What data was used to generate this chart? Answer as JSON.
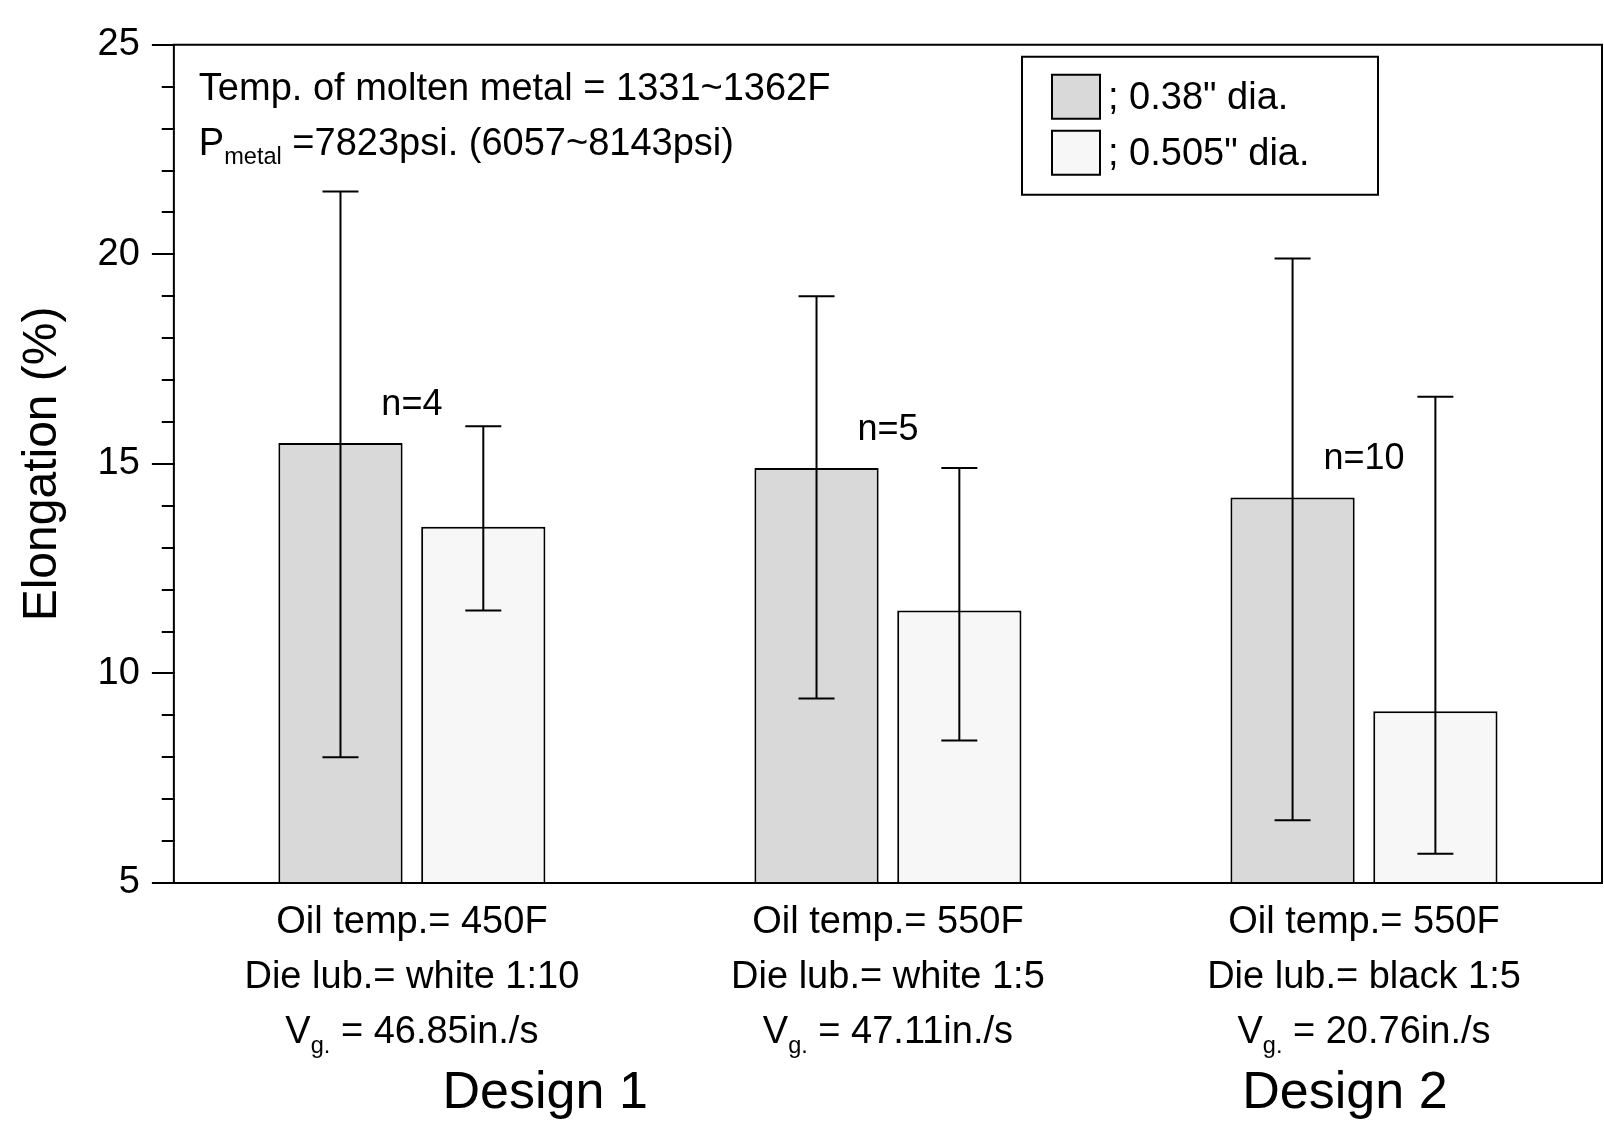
{
  "chart_data": {
    "type": "bar",
    "ylabel": "Elongation (%)",
    "categories": [
      "Oil temp.= 450F\nDie lub.= white 1:10\nV$_{g.}$ = 46.85in./s",
      "Oil temp.= 550F\nDie lub.= white 1:5\nV$_{g.}$ = 47.11in./s",
      "Oil temp.= 550F\nDie lub.= black 1:5\nV$_{g.}$ = 20.76in./s"
    ],
    "series": [
      {
        "name": "; 0.38\" dia.",
        "color": "#d9d9d9",
        "values": [
          15.5,
          14.9,
          14.2
        ],
        "errors": [
          [
            8.0,
            21.5
          ],
          [
            9.4,
            19.0
          ],
          [
            6.5,
            19.9
          ]
        ]
      },
      {
        "name": "; 0.505\" dia.",
        "color": "#f7f7f7",
        "values": [
          13.5,
          11.5,
          9.1
        ],
        "errors": [
          [
            11.5,
            15.9
          ],
          [
            8.4,
            14.9
          ],
          [
            5.7,
            16.6
          ]
        ]
      }
    ],
    "ylim": [
      5,
      25
    ],
    "yticks": [
      5,
      {
        "value": 6,
        "label": null
      },
      {
        "value": 7,
        "label": null
      },
      {
        "value": 8,
        "label": null
      },
      {
        "value": 9,
        "label": null
      },
      10,
      {
        "value": 11,
        "label": null
      },
      {
        "value": 12,
        "label": null
      },
      {
        "value": 13,
        "label": null
      },
      {
        "value": 14,
        "label": null
      },
      15,
      {
        "value": 16,
        "label": null
      },
      {
        "value": 17,
        "label": null
      },
      {
        "value": 18,
        "label": null
      },
      {
        "value": 19,
        "label": null
      },
      20,
      {
        "value": 21,
        "label": null
      },
      {
        "value": 22,
        "label": null
      },
      {
        "value": 23,
        "label": null
      },
      {
        "value": 24,
        "label": null
      },
      25
    ],
    "grid": false,
    "legend": "top right",
    "annotations": [
      "Temp. of molten metal = 1331~1362F",
      "P$_{metal}$ =7823psi. (6057~8143psi)",
      "n=4",
      "n=5",
      "n=10",
      "Design 1",
      "Design 2"
    ]
  }
}
